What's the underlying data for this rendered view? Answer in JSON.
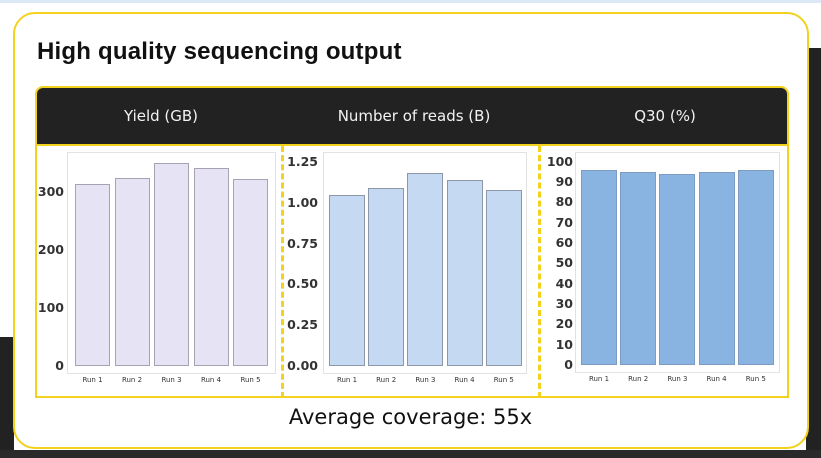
{
  "slide": {
    "title": "High quality sequencing output",
    "footer": "Average coverage: 55x",
    "colors": {
      "accent": "#f2d21c",
      "header_bg": "#222222",
      "yield_bar": "#e6e3f5",
      "reads_bar": "#c5d9f2",
      "q30_bar": "#89b3e0"
    }
  },
  "headers": [
    "Yield (GB)",
    "Number of reads (B)",
    "Q30 (%)"
  ],
  "chart_data": [
    {
      "type": "bar",
      "title": "Yield (GB)",
      "categories": [
        "Run 1",
        "Run 2",
        "Run 3",
        "Run 4",
        "Run 5"
      ],
      "values": [
        314,
        324,
        350,
        341,
        322
      ],
      "yticks": [
        "0",
        "100",
        "200",
        "300"
      ],
      "ylim": [
        0,
        360
      ],
      "xlabel": "",
      "ylabel": "",
      "grid": false
    },
    {
      "type": "bar",
      "title": "Number of reads (B)",
      "categories": [
        "Run 1",
        "Run 2",
        "Run 3",
        "Run 4",
        "Run 5"
      ],
      "values": [
        1.05,
        1.09,
        1.18,
        1.14,
        1.08
      ],
      "yticks": [
        "0.00",
        "0.25",
        "0.50",
        "0.75",
        "1.00",
        "1.25"
      ],
      "ylim": [
        0,
        1.3
      ],
      "xlabel": "",
      "ylabel": "",
      "grid": false
    },
    {
      "type": "bar",
      "title": "Q30 (%)",
      "categories": [
        "Run 1",
        "Run 2",
        "Run 3",
        "Run 4",
        "Run 5"
      ],
      "values": [
        96,
        95,
        94,
        95,
        96
      ],
      "yticks": [
        "0",
        "10",
        "20",
        "30",
        "40",
        "50",
        "60",
        "70",
        "80",
        "90",
        "100"
      ],
      "ylim": [
        0,
        105
      ],
      "xlabel": "",
      "ylabel": "",
      "grid": false
    }
  ]
}
